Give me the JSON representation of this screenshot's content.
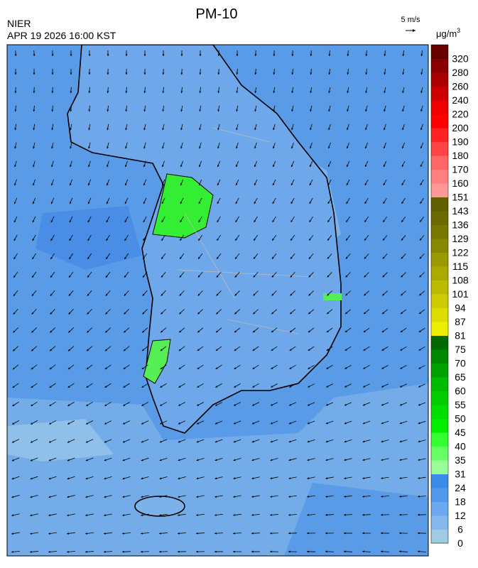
{
  "header": {
    "title": "PM-10",
    "agency": "NIER",
    "timestamp": "APR 19 2026 16:00 KST"
  },
  "wind_scale": {
    "label": "5 m/s"
  },
  "legend": {
    "unit": "μg/m",
    "unit_exponent": "3",
    "ticks": [
      0,
      6,
      12,
      18,
      24,
      31,
      35,
      40,
      45,
      50,
      55,
      60,
      65,
      70,
      75,
      81,
      87,
      94,
      101,
      108,
      115,
      122,
      129,
      136,
      143,
      151,
      160,
      170,
      180,
      190,
      200,
      220,
      240,
      260,
      280,
      320
    ],
    "colors": [
      "#9fcbe3",
      "#85b8ec",
      "#6ba8ee",
      "#5299ec",
      "#3a8ce8",
      "#99ff99",
      "#66ff66",
      "#33ff33",
      "#00ee00",
      "#00dd00",
      "#00cc00",
      "#00bb00",
      "#00a000",
      "#008800",
      "#006a00",
      "#eeee00",
      "#dddd00",
      "#cccc00",
      "#bbbb00",
      "#aaaa00",
      "#999900",
      "#888800",
      "#777700",
      "#6a6a00",
      "#606000",
      "#ff9999",
      "#ff8080",
      "#ff6666",
      "#ff4444",
      "#ff2222",
      "#ff0000",
      "#ee0000",
      "#cc0000",
      "#aa0000",
      "#880000",
      "#660000"
    ]
  }
}
